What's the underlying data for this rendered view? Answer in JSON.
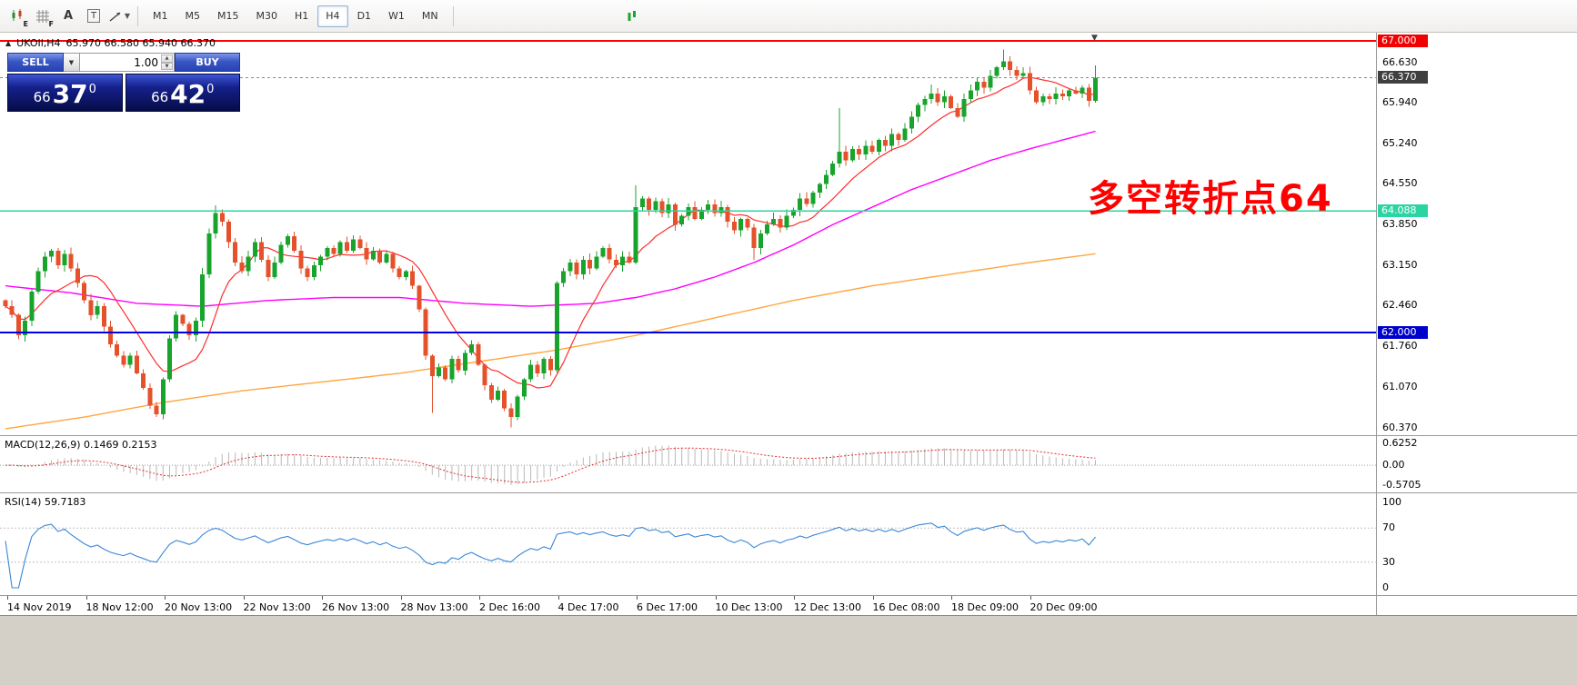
{
  "toolbar": {
    "icon_subs": [
      "E",
      "F"
    ],
    "text_label": "A",
    "text_tool": "T",
    "timeframes": [
      {
        "label": "M1",
        "active": false
      },
      {
        "label": "M5",
        "active": false
      },
      {
        "label": "M15",
        "active": false
      },
      {
        "label": "M30",
        "active": false
      },
      {
        "label": "H1",
        "active": false
      },
      {
        "label": "H4",
        "active": true
      },
      {
        "label": "D1",
        "active": false
      },
      {
        "label": "W1",
        "active": false
      },
      {
        "label": "MN",
        "active": false
      }
    ]
  },
  "chart": {
    "header": {
      "symbol": "UKOIl,H4",
      "ohlc": "65.970 66.580 65.940 66.370"
    },
    "trade_panel": {
      "sell_label": "SELL",
      "buy_label": "BUY",
      "volume": "1.00",
      "sell_price": {
        "prefix": "66",
        "big": "37",
        "sup": "0"
      },
      "buy_price": {
        "prefix": "66",
        "big": "42",
        "sup": "0"
      }
    },
    "annotation": {
      "text": "多空转折点64",
      "color": "#ff0000"
    },
    "levels": [
      {
        "price": 67.0,
        "label": "67.000",
        "color": "#ff0000",
        "badge_bg": "#f20000",
        "width": 2
      },
      {
        "price": 64.088,
        "label": "64.088",
        "color": "#2bd5a3",
        "badge_bg": "#2bd5a3",
        "width": 1.5
      },
      {
        "price": 62.0,
        "label": "62.000",
        "color": "#0000e0",
        "badge_bg": "#0000cd",
        "width": 2
      }
    ],
    "current_price": {
      "value": 66.37,
      "label": "66.370",
      "badge_bg": "#3f3f3f"
    },
    "y_axis_labels": [
      "66.630",
      "65.940",
      "65.240",
      "64.550",
      "63.850",
      "63.150",
      "62.460",
      "61.760",
      "61.070",
      "60.370"
    ]
  },
  "chart_data": {
    "type": "candlestick",
    "symbol": "UKOIl",
    "period": "H4",
    "current_ohlc": {
      "open": 65.97,
      "high": 66.58,
      "low": 65.94,
      "close": 66.37
    },
    "first_open": 62.55,
    "closes": [
      62.45,
      62.3,
      61.95,
      62.2,
      62.7,
      63.05,
      63.3,
      63.4,
      63.15,
      63.35,
      63.1,
      62.85,
      62.55,
      62.3,
      62.45,
      62.1,
      61.8,
      61.6,
      61.45,
      61.6,
      61.3,
      61.05,
      60.75,
      60.6,
      61.2,
      61.9,
      62.3,
      62.15,
      61.95,
      62.2,
      63.0,
      63.7,
      64.05,
      63.9,
      63.55,
      63.2,
      63.05,
      63.3,
      63.55,
      63.25,
      62.95,
      63.2,
      63.5,
      63.65,
      63.4,
      63.1,
      62.95,
      63.15,
      63.3,
      63.45,
      63.35,
      63.55,
      63.4,
      63.6,
      63.45,
      63.25,
      63.4,
      63.2,
      63.35,
      63.1,
      62.95,
      63.05,
      62.8,
      62.4,
      61.6,
      61.25,
      61.4,
      61.2,
      61.55,
      61.35,
      61.65,
      61.8,
      61.45,
      61.1,
      60.85,
      61.0,
      60.7,
      60.55,
      60.9,
      61.2,
      61.45,
      61.3,
      61.55,
      61.35,
      62.85,
      63.05,
      63.2,
      63.0,
      63.25,
      63.1,
      63.3,
      63.45,
      63.25,
      63.15,
      63.3,
      63.2,
      64.15,
      64.3,
      64.1,
      64.25,
      64.05,
      64.2,
      63.85,
      64.0,
      64.15,
      63.95,
      64.1,
      64.2,
      64.05,
      64.15,
      63.9,
      63.75,
      63.95,
      63.8,
      63.45,
      63.7,
      63.85,
      63.95,
      63.8,
      64.0,
      64.1,
      64.3,
      64.2,
      64.4,
      64.55,
      64.7,
      64.9,
      65.1,
      64.95,
      65.15,
      65.05,
      65.2,
      65.1,
      65.3,
      65.2,
      65.4,
      65.3,
      65.5,
      65.7,
      65.9,
      66.0,
      66.1,
      65.95,
      66.05,
      65.85,
      65.7,
      66.0,
      66.15,
      66.3,
      66.2,
      66.4,
      66.55,
      66.65,
      66.5,
      66.4,
      66.45,
      66.15,
      65.95,
      66.05,
      66.0,
      66.1,
      66.05,
      66.15,
      66.1,
      66.2,
      65.97,
      66.37
    ],
    "wick_overrides": {
      "23": {
        "low": 60.55
      },
      "32": {
        "high": 64.18
      },
      "65": {
        "low": 60.62
      },
      "77": {
        "low": 60.37
      },
      "96": {
        "high": 64.52
      },
      "114": {
        "low": 63.25
      },
      "127": {
        "high": 65.85
      },
      "141": {
        "high": 66.25
      },
      "152": {
        "high": 66.85
      },
      "166": {
        "high": 66.58,
        "low": 65.94
      }
    },
    "colors": {
      "up": "#18a42c",
      "down": "#e4512b",
      "ma_fast": "#ff2d2d"
    },
    "ma_medium": {
      "color": "#ff00ff",
      "points": [
        [
          0,
          62.8
        ],
        [
          10,
          62.68
        ],
        [
          20,
          62.5
        ],
        [
          30,
          62.45
        ],
        [
          40,
          62.55
        ],
        [
          50,
          62.6
        ],
        [
          60,
          62.6
        ],
        [
          70,
          62.5
        ],
        [
          80,
          62.45
        ],
        [
          90,
          62.5
        ],
        [
          96,
          62.6
        ],
        [
          102,
          62.75
        ],
        [
          108,
          62.95
        ],
        [
          114,
          63.2
        ],
        [
          120,
          63.5
        ],
        [
          126,
          63.85
        ],
        [
          132,
          64.15
        ],
        [
          138,
          64.45
        ],
        [
          144,
          64.7
        ],
        [
          150,
          64.95
        ],
        [
          156,
          65.15
        ],
        [
          166,
          65.45
        ]
      ]
    },
    "ma_slow": {
      "color": "#ffa640",
      "points": [
        [
          0,
          60.35
        ],
        [
          12,
          60.55
        ],
        [
          24,
          60.8
        ],
        [
          36,
          61.0
        ],
        [
          48,
          61.15
        ],
        [
          60,
          61.3
        ],
        [
          72,
          61.5
        ],
        [
          84,
          61.7
        ],
        [
          96,
          61.95
        ],
        [
          108,
          62.25
        ],
        [
          120,
          62.55
        ],
        [
          132,
          62.8
        ],
        [
          144,
          63.0
        ],
        [
          156,
          63.2
        ],
        [
          166,
          63.35
        ]
      ]
    },
    "indicators": {
      "macd": {
        "label_full": "MACD(12,26,9) 0.1469 0.2153",
        "values": [
          0.1469,
          0.2153
        ],
        "axis_labels": [
          "0.6252",
          "0.00",
          "-0.5705"
        ],
        "scale_max": 0.6252,
        "scale_min": -0.5705
      },
      "rsi": {
        "label_full": "RSI(14) 59.7183",
        "value": 59.7183,
        "axis_labels": [
          "100",
          "70",
          "30",
          "0"
        ],
        "levels": [
          70,
          30
        ]
      }
    },
    "x_axis_labels": [
      "14 Nov 2019",
      "18 Nov 12:00",
      "20 Nov 13:00",
      "22 Nov 13:00",
      "26 Nov 13:00",
      "28 Nov 13:00",
      "2 Dec 16:00",
      "4 Dec 17:00",
      "6 Dec 17:00",
      "10 Dec 13:00",
      "12 Dec 13:00",
      "16 Dec 08:00",
      "18 Dec 09:00",
      "20 Dec 09:00"
    ]
  }
}
